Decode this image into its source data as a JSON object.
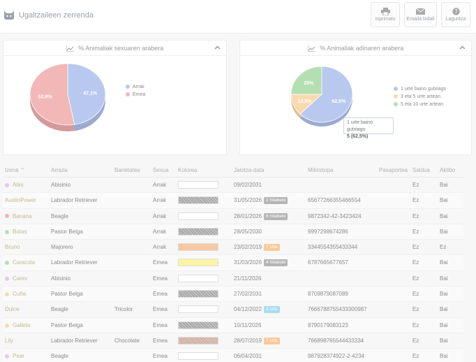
{
  "app": {
    "title": "Ugaltzaileen zerrenda"
  },
  "toolbar": {
    "print_label": "Inprimatu",
    "email_label": "Emaila bidali",
    "help_label": "Laguntza"
  },
  "charts": {
    "sex": {
      "title": "% Animaliak sexuaren arabera"
    },
    "age": {
      "title": "% Animaliak adinaren arabera",
      "tooltip_label": "1 urte baino gutxiago",
      "tooltip_value": "5 (62,5%)"
    }
  },
  "chart_data": [
    {
      "type": "pie",
      "title": "% Animaliak sexuaren arabera",
      "labels": [
        "Arrak",
        "Emea"
      ],
      "values": [
        47.1,
        52.9
      ],
      "value_labels": [
        "47,1%",
        "52,9%"
      ],
      "colors": [
        "#b9c8ee",
        "#f2b8b8"
      ],
      "legend": "right"
    },
    {
      "type": "pie",
      "title": "% Animaliak adinaren arabera",
      "labels": [
        "1 urte baino gutxiago",
        "3 eta 5 urte artean",
        "5 eta 10 urte artean"
      ],
      "values": [
        62.5,
        12.5,
        25
      ],
      "value_labels": [
        "62,5%",
        "12,5%",
        "25%"
      ],
      "colors": [
        "#b9c8ee",
        "#fbd9b0",
        "#b5dfb3"
      ],
      "legend": "right"
    }
  ],
  "table": {
    "columns": [
      "Izena",
      "Arraza",
      "Barietatea",
      "Sexua",
      "Kolorea",
      "Jaiotza-data",
      "Mikrotxipa",
      "Pasaportea",
      "Saldua",
      "Aktibo"
    ],
    "rows": [
      {
        "name": "Abis",
        "dot": "#e7c7f0",
        "breed": "Abisinio",
        "variety": "",
        "sex": "Arrak",
        "color": "#ffffff",
        "pattern": false,
        "date": "09/02/2031",
        "badge": "",
        "badge_color": "",
        "chip": "",
        "passport": "",
        "sold": "Ez",
        "active": "Bai"
      },
      {
        "name": "AustinPower",
        "dot": "",
        "breed": "Labrador Retriever",
        "variety": "",
        "sex": "Arrak",
        "color": "#a9a9a9",
        "pattern": true,
        "date": "31/05/2026",
        "badge": "2 hilabete",
        "badge_color": "#b5b5b5",
        "chip": "65677266355466554",
        "passport": "",
        "sold": "Ez",
        "active": "Bai"
      },
      {
        "name": "Banana",
        "dot": "#f4b3b3",
        "breed": "Beagle",
        "variety": "",
        "sex": "Arrak",
        "color": "#ffffff",
        "pattern": false,
        "date": "28/01/2026",
        "badge": "6 hilabete",
        "badge_color": "#b5b5b5",
        "chip": "9872342-42-3423424",
        "passport": "",
        "sold": "Ez",
        "active": "Bai"
      },
      {
        "name": "Botas",
        "dot": "#b5dfb3",
        "breed": "Pastor Belga",
        "variety": "",
        "sex": "Arrak",
        "color": "#a9a9a9",
        "pattern": true,
        "date": "28/05/2030",
        "badge": "",
        "badge_color": "",
        "chip": "9997298674286",
        "passport": "",
        "sold": "Ez",
        "active": "Bai"
      },
      {
        "name": "Bruno",
        "dot": "",
        "breed": "Majorero",
        "variety": "",
        "sex": "Arrak",
        "color": "#f6c8a4",
        "pattern": false,
        "date": "23/02/2019",
        "badge": "7 urte",
        "badge_color": "#f8c99a",
        "chip": "3344554355433344",
        "passport": "",
        "sold": "Ez",
        "active": "Ez"
      },
      {
        "name": "Caracola",
        "dot": "#b5dfb3",
        "breed": "Labrador Retriever",
        "variety": "",
        "sex": "Emea",
        "color": "#fbf3a6",
        "pattern": false,
        "date": "31/03/2026",
        "badge": "4 hilabete",
        "badge_color": "#b5b5b5",
        "chip": "6787665677657",
        "passport": "",
        "sold": "Ez",
        "active": "Bai"
      },
      {
        "name": "Carex",
        "dot": "#e7c7f0",
        "breed": "Abisinio",
        "variety": "",
        "sex": "Emea",
        "color": "#ffffff",
        "pattern": false,
        "date": "21/11/2026",
        "badge": "",
        "badge_color": "",
        "chip": "",
        "passport": "",
        "sold": "Ez",
        "active": "Bai"
      },
      {
        "name": "Cuña",
        "dot": "#fbd9b0",
        "breed": "Pastor Belga",
        "variety": "",
        "sex": "Emea",
        "color": "#a9a9a9",
        "pattern": true,
        "date": "27/02/2031",
        "badge": "",
        "badge_color": "",
        "chip": "8709879087089",
        "passport": "",
        "sold": "Ez",
        "active": "Bai"
      },
      {
        "name": "Dulce",
        "dot": "",
        "breed": "Beagle",
        "variety": "Tricolor",
        "sex": "Emea",
        "color": "#ffffff",
        "pattern": false,
        "date": "04/12/2022",
        "badge": "3 urte",
        "badge_color": "#a9dcf2",
        "chip": "7666788755433300987",
        "passport": "",
        "sold": "Ez",
        "active": "Bai"
      },
      {
        "name": "Galleta",
        "dot": "#fbd9b0",
        "breed": "Pastor Belga",
        "variety": "",
        "sex": "Emea",
        "color": "#a9a9a9",
        "pattern": true,
        "date": "10/11/2026",
        "badge": "",
        "badge_color": "",
        "chip": "8790179083123",
        "passport": "",
        "sold": "Ez",
        "active": "Bai"
      },
      {
        "name": "Lily",
        "dot": "",
        "breed": "Labrador Retriever",
        "variety": "Chocolate",
        "sex": "Emea",
        "color": "#d9b0a0",
        "pattern": true,
        "date": "28/07/2019",
        "badge": "7 urte",
        "badge_color": "#f8c99a",
        "chip": "766898765544433334",
        "passport": "",
        "sold": "Ez",
        "active": "Bai"
      },
      {
        "name": "Pear",
        "dot": "#e7c7f0",
        "breed": "Beagle",
        "variety": "",
        "sex": "Emea",
        "color": "#ffffff",
        "pattern": false,
        "date": "06/04/2031",
        "badge": "",
        "badge_color": "",
        "chip": "987928374922-2-4234",
        "passport": "",
        "sold": "Ez",
        "active": "Bai"
      }
    ]
  }
}
